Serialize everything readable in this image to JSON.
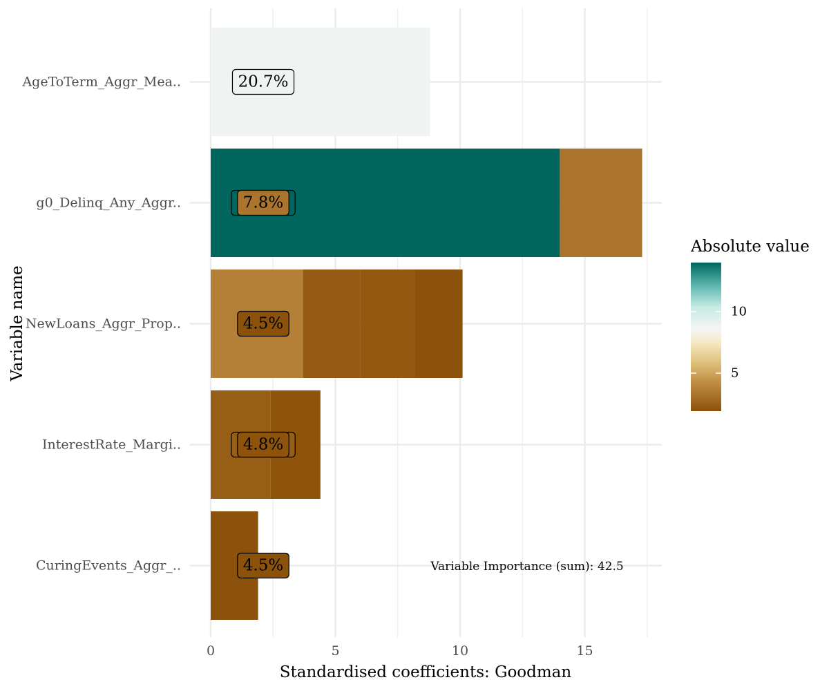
{
  "chart_data": {
    "type": "bar",
    "orientation": "horizontal",
    "stacked": true,
    "xlabel": "Standardised coefficients: Goodman",
    "ylabel": "Variable name",
    "xlim": [
      0,
      18
    ],
    "x_ticks": [
      0,
      5,
      10,
      15
    ],
    "grid": true,
    "categories": [
      "AgeToTerm_Aggr_Mea..",
      "g0_Delinq_Any_Aggr..",
      "NewLoans_Aggr_Prop..",
      "InterestRate_Margi..",
      "CuringEvents_Aggr_.."
    ],
    "bars": [
      {
        "category": "AgeToTerm_Aggr_Mea..",
        "label": "20.7%",
        "segments": [
          8.8
        ]
      },
      {
        "category": "g0_Delinq_Any_Aggr..",
        "label": "7.8%",
        "segments": [
          14.0,
          3.3
        ]
      },
      {
        "category": "NewLoans_Aggr_Prop..",
        "label": "4.5%",
        "segments": [
          3.7,
          2.3,
          2.2,
          1.9
        ]
      },
      {
        "category": "InterestRate_Margi..",
        "label": "4.8%",
        "segments": [
          2.4,
          2.0
        ]
      },
      {
        "category": "CuringEvents_Aggr_..",
        "label": "4.5%",
        "segments": [
          1.9
        ]
      }
    ],
    "legend": {
      "title": "Absolute value",
      "placement": "right",
      "range": [
        1.9,
        14.0
      ],
      "ticks": [
        5,
        10
      ]
    },
    "annotation": "Variable Importance (sum): 42.5"
  }
}
